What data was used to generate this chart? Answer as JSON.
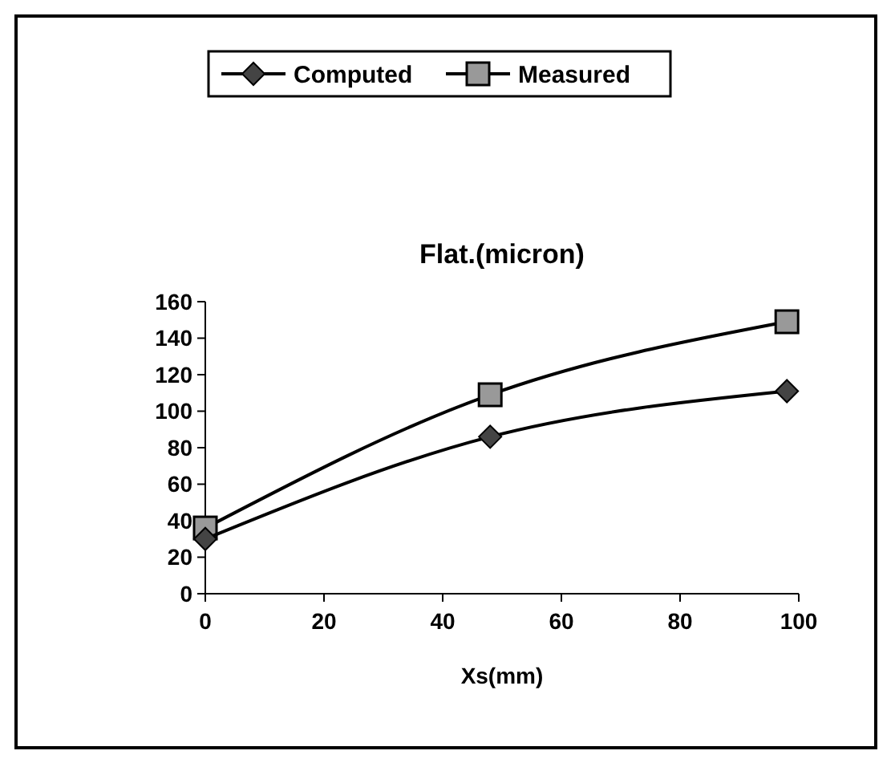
{
  "chart_data": {
    "type": "line",
    "title": "Flat.(micron)",
    "xlabel": "Xs(mm)",
    "x": [
      0,
      48,
      98
    ],
    "series": [
      {
        "name": "Computed",
        "color": "#000000",
        "marker": "diamond",
        "values": [
          30,
          86,
          111
        ]
      },
      {
        "name": "Measured",
        "color": "#000000",
        "marker": "square",
        "values": [
          36,
          109,
          149
        ]
      }
    ],
    "xlim": [
      0,
      100
    ],
    "xticks": [
      0,
      20,
      40,
      60,
      80,
      100
    ],
    "ylim": [
      0,
      160
    ],
    "yticks": [
      0,
      20,
      40,
      60,
      80,
      100,
      120,
      140,
      160
    ],
    "grid": false,
    "legend": "top",
    "line_style": "solid"
  }
}
